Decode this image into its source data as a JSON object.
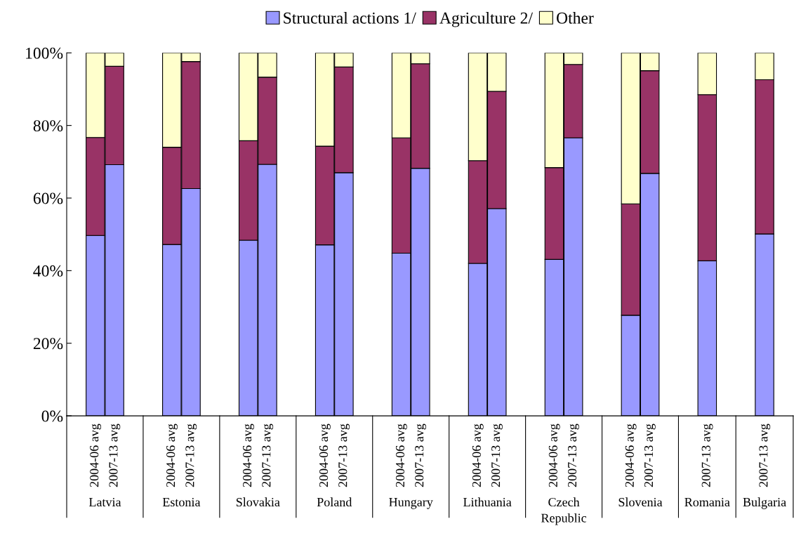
{
  "chart_data": {
    "type": "bar",
    "stacked": true,
    "legend": "top",
    "grid": false,
    "categories": [
      null,
      "2004-06 avg",
      "2007-13 avg",
      null,
      null,
      "2004-06 avg",
      "2007-13 avg",
      null,
      null,
      "2004-06 avg",
      "2007-13 avg",
      null,
      null,
      "2004-06 avg",
      "2007-13 avg",
      null,
      null,
      "2004-06 avg",
      "2007-13 avg",
      null,
      null,
      "2004-06 avg",
      "2007-13 avg",
      null,
      null,
      "2004-06 avg",
      "2007-13 avg",
      null,
      null,
      "2004-06 avg",
      "2007-13 avg",
      null,
      null,
      "2007-13 avg",
      null,
      null,
      "2007-13 avg",
      null
    ],
    "annotations": [
      "Latvia",
      "Estonia",
      "Slovakia",
      "Poland",
      "Hungary",
      "Lithuania",
      "Czech Republic",
      "Slovenia",
      "Romania",
      "Bulgaria"
    ],
    "ylim": [
      0,
      100
    ],
    "yticks": [
      {
        "value": 0,
        "label": "0%"
      },
      {
        "value": 20,
        "label": "20%"
      },
      {
        "value": 40,
        "label": "40%"
      },
      {
        "value": 60,
        "label": "60%"
      },
      {
        "value": 80,
        "label": "80%"
      },
      {
        "value": 100,
        "label": "100%"
      }
    ],
    "series": [
      {
        "name": "Structural actions 1/",
        "color": "#9999ff",
        "values": [
          null,
          49.7,
          69.2,
          null,
          null,
          47.2,
          62.6,
          null,
          null,
          48.4,
          69.3,
          null,
          null,
          47.1,
          67.0,
          null,
          null,
          44.8,
          68.2,
          null,
          null,
          42.0,
          57.1,
          null,
          null,
          43.1,
          76.6,
          null,
          null,
          27.7,
          66.8,
          null,
          null,
          42.7,
          null,
          null,
          50.1,
          null
        ]
      },
      {
        "name": "Agriculture 2/",
        "color": "#993366",
        "values": [
          null,
          27.0,
          27.1,
          null,
          null,
          26.8,
          35.0,
          null,
          null,
          27.4,
          24.0,
          null,
          null,
          27.2,
          29.1,
          null,
          null,
          31.8,
          28.8,
          null,
          null,
          28.3,
          32.3,
          null,
          null,
          25.3,
          20.2,
          null,
          null,
          30.7,
          28.3,
          null,
          null,
          45.8,
          null,
          null,
          42.5,
          null
        ]
      },
      {
        "name": "Other",
        "color": "#ffffcc",
        "values": [
          null,
          23.3,
          3.7,
          null,
          null,
          26.0,
          2.4,
          null,
          null,
          24.2,
          6.7,
          null,
          null,
          25.7,
          3.9,
          null,
          null,
          23.4,
          3.0,
          null,
          null,
          29.7,
          10.6,
          null,
          null,
          31.6,
          3.2,
          null,
          null,
          41.6,
          4.9,
          null,
          null,
          11.5,
          null,
          null,
          7.4,
          null
        ]
      }
    ]
  }
}
